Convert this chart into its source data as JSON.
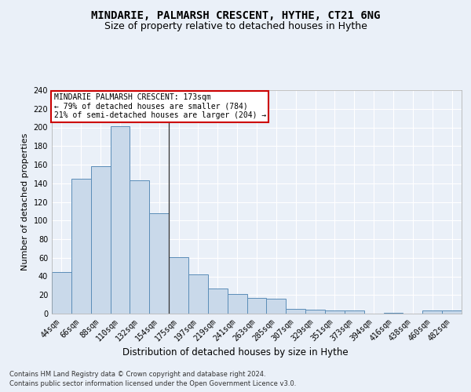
{
  "title1": "MINDARIE, PALMARSH CRESCENT, HYTHE, CT21 6NG",
  "title2": "Size of property relative to detached houses in Hythe",
  "xlabel": "Distribution of detached houses by size in Hythe",
  "ylabel": "Number of detached properties",
  "categories": [
    "44sqm",
    "66sqm",
    "88sqm",
    "110sqm",
    "132sqm",
    "154sqm",
    "175sqm",
    "197sqm",
    "219sqm",
    "241sqm",
    "263sqm",
    "285sqm",
    "307sqm",
    "329sqm",
    "351sqm",
    "373sqm",
    "394sqm",
    "416sqm",
    "438sqm",
    "460sqm",
    "482sqm"
  ],
  "values": [
    45,
    145,
    158,
    201,
    143,
    108,
    61,
    42,
    27,
    21,
    17,
    16,
    5,
    4,
    3,
    3,
    0,
    1,
    0,
    3,
    3
  ],
  "bar_color": "#c9d9ea",
  "bar_edge_color": "#5b8db8",
  "highlight_index": 6,
  "annotation_title": "MINDARIE PALMARSH CRESCENT: 173sqm",
  "annotation_line1": "← 79% of detached houses are smaller (784)",
  "annotation_line2": "21% of semi-detached houses are larger (204) →",
  "annotation_box_color": "#ffffff",
  "annotation_box_edge": "#cc0000",
  "ylim": [
    0,
    240
  ],
  "yticks": [
    0,
    20,
    40,
    60,
    80,
    100,
    120,
    140,
    160,
    180,
    200,
    220,
    240
  ],
  "bg_color": "#eaf0f8",
  "plot_bg_color": "#eaf0f8",
  "footer1": "Contains HM Land Registry data © Crown copyright and database right 2024.",
  "footer2": "Contains public sector information licensed under the Open Government Licence v3.0.",
  "title1_fontsize": 10,
  "title2_fontsize": 9,
  "xlabel_fontsize": 8.5,
  "ylabel_fontsize": 8,
  "tick_fontsize": 7,
  "annotation_fontsize": 7,
  "footer_fontsize": 6
}
